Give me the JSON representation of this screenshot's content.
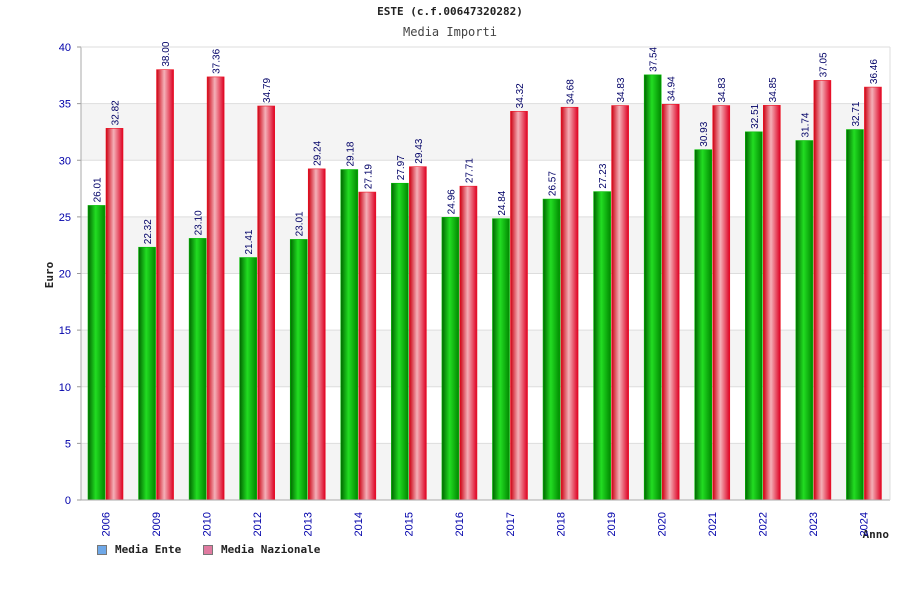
{
  "title": "ESTE (c.f.00647320282)",
  "subtitle": "Media Importi",
  "legend": {
    "ente": "Media Ente",
    "nazionale": "Media Nazionale"
  },
  "colors": {
    "ente_swatch": "#6fa8e8",
    "nazionale_swatch": "#e07aa0",
    "ente_bar": "#00bb00",
    "nazionale_bar": "#ee1122",
    "value_text": "#000066",
    "tick_text": "#0000aa"
  },
  "chart_data": {
    "type": "bar",
    "title": "ESTE (c.f.00647320282)",
    "subtitle": "Media Importi",
    "xlabel": "Anno",
    "ylabel": "Euro",
    "ylim": [
      0,
      40
    ],
    "yticks": [
      0,
      5,
      10,
      15,
      20,
      25,
      30,
      35,
      40
    ],
    "categories": [
      "2006",
      "2009",
      "2010",
      "2012",
      "2013",
      "2014",
      "2015",
      "2016",
      "2017",
      "2018",
      "2019",
      "2020",
      "2021",
      "2022",
      "2023",
      "2024"
    ],
    "series": [
      {
        "name": "Media Ente",
        "values": [
          26.01,
          22.32,
          23.1,
          21.41,
          23.01,
          29.18,
          27.97,
          24.96,
          24.84,
          26.57,
          27.23,
          37.54,
          30.93,
          32.51,
          31.74,
          32.71
        ]
      },
      {
        "name": "Media Nazionale",
        "values": [
          32.82,
          38.0,
          37.36,
          34.79,
          29.24,
          27.19,
          29.43,
          27.71,
          34.32,
          34.68,
          34.83,
          34.94,
          34.83,
          34.85,
          37.05,
          36.46
        ]
      }
    ],
    "grid": true,
    "legend_position": "bottom-left"
  }
}
